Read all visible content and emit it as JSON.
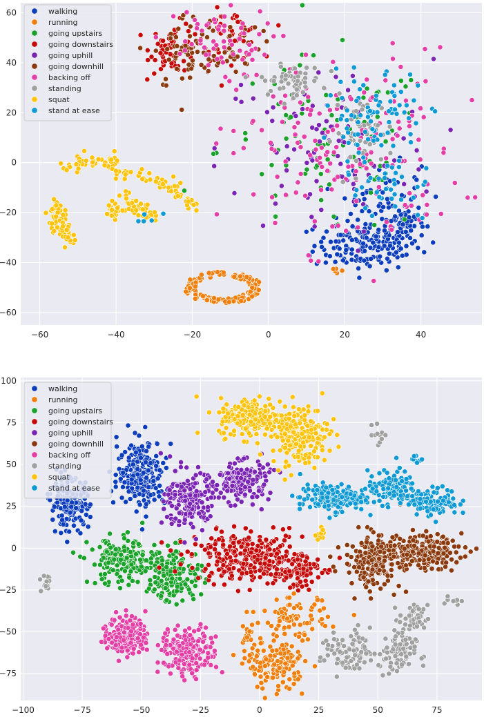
{
  "chart_data": [
    {
      "type": "scatter",
      "title": "",
      "xlabel": "",
      "ylabel": "",
      "xlim": [
        -65,
        56
      ],
      "ylim": [
        -65,
        64
      ],
      "xticks": [
        -60,
        -40,
        -20,
        0,
        20,
        40
      ],
      "yticks": [
        -60,
        -40,
        -20,
        0,
        20,
        40,
        60
      ],
      "grid": true,
      "legend": "top-left",
      "series": [
        {
          "name": "walking",
          "color": "#0c3dbd",
          "clusters": [
            {
              "cx": 26,
              "cy": -33,
              "sx": 7,
              "sy": 5,
              "n": 160
            },
            {
              "cx": 35,
              "cy": -24,
              "sx": 3,
              "sy": 4,
              "n": 60
            },
            {
              "cx": 30,
              "cy": -12,
              "sx": 5,
              "sy": 6,
              "n": 50
            }
          ]
        },
        {
          "name": "running",
          "color": "#f07f0d",
          "rings": [
            {
              "cx": -12,
              "cy": -50,
              "rx": 9,
              "ry": 5.5,
              "n": 150
            }
          ],
          "clusters": [
            {
              "cx": 18,
              "cy": -43,
              "sx": 1,
              "sy": 1,
              "n": 5
            }
          ]
        },
        {
          "name": "going upstairs",
          "color": "#1aa22a",
          "clusters": [
            {
              "cx": 15,
              "cy": 5,
              "sx": 14,
              "sy": 18,
              "n": 90
            }
          ]
        },
        {
          "name": "going downstairs",
          "color": "#c60a0a",
          "clusters": [
            {
              "cx": -25,
              "cy": 46,
              "sx": 3,
              "sy": 5,
              "n": 60
            },
            {
              "cx": -10,
              "cy": 51,
              "sx": 4,
              "sy": 5,
              "n": 50
            }
          ]
        },
        {
          "name": "going uphill",
          "color": "#7b25b5",
          "clusters": [
            {
              "cx": 15,
              "cy": 5,
              "sx": 14,
              "sy": 18,
              "n": 90
            }
          ]
        },
        {
          "name": "going downhill",
          "color": "#8b3a0e",
          "clusters": [
            {
              "cx": -22,
              "cy": 44,
              "sx": 4,
              "sy": 8,
              "n": 50
            },
            {
              "cx": -10,
              "cy": 48,
              "sx": 4,
              "sy": 6,
              "n": 40
            }
          ]
        },
        {
          "name": "backing off",
          "color": "#e43fa6",
          "clusters": [
            {
              "cx": -15,
              "cy": 48,
              "sx": 8,
              "sy": 7,
              "n": 60
            },
            {
              "cx": 20,
              "cy": 5,
              "sx": 15,
              "sy": 20,
              "n": 160
            }
          ]
        },
        {
          "name": "standing",
          "color": "#a0a0a0",
          "clusters": [
            {
              "cx": 6,
              "cy": 33,
              "sx": 4,
              "sy": 3,
              "n": 60
            },
            {
              "cx": 25,
              "cy": 12,
              "sx": 4,
              "sy": 7,
              "n": 50
            }
          ]
        },
        {
          "name": "squat",
          "color": "#ffc30b",
          "paths": [
            {
              "pts": [
                [
                  -55,
                  -17
                ],
                [
                  -55,
                  -25
                ],
                [
                  -52,
                  -31
                ]
              ],
              "n": 70
            },
            {
              "pts": [
                [
                  -54,
                  -2
                ],
                [
                  -50,
                  0
                ],
                [
                  -44,
                  0
                ],
                [
                  -40,
                  0
                ]
              ],
              "n": 45
            },
            {
              "pts": [
                [
                  -40,
                  -3
                ],
                [
                  -34,
                  -6
                ],
                [
                  -28,
                  -8
                ],
                [
                  -24,
                  -10
                ],
                [
                  -20,
                  -18
                ]
              ],
              "n": 55
            },
            {
              "pts": [
                [
                  -41,
                  -22
                ],
                [
                  -38,
                  -12
                ],
                [
                  -35,
                  -18
                ],
                [
                  -30,
                  -22
                ]
              ],
              "n": 60
            }
          ]
        },
        {
          "name": "stand at ease",
          "color": "#0f9ad6",
          "clusters": [
            {
              "cx": 28,
              "cy": 20,
              "sx": 6,
              "sy": 8,
              "n": 80
            },
            {
              "cx": 32,
              "cy": -8,
              "sx": 6,
              "sy": 8,
              "n": 40
            },
            {
              "cx": -32,
              "cy": -23,
              "sx": 3,
              "sy": 2,
              "n": 5
            }
          ]
        }
      ]
    },
    {
      "type": "scatter",
      "title": "",
      "xlabel": "",
      "ylabel": "",
      "xlim": [
        -101,
        94
      ],
      "ylim": [
        -91,
        102
      ],
      "xticks": [
        -100,
        -75,
        -50,
        -25,
        0,
        25,
        50,
        75
      ],
      "yticks": [
        -75,
        -50,
        -25,
        0,
        25,
        50,
        75,
        100
      ],
      "grid": true,
      "legend": "top-left",
      "series": [
        {
          "name": "walking",
          "color": "#0c3dbd",
          "clusters": [
            {
              "cx": -80,
              "cy": 27,
              "sx": 4,
              "sy": 7,
              "n": 200
            },
            {
              "cx": -50,
              "cy": 45,
              "sx": 5,
              "sy": 10,
              "n": 240
            }
          ]
        },
        {
          "name": "running",
          "color": "#f07f0d",
          "clusters": [
            {
              "cx": 7,
              "cy": -70,
              "sx": 6,
              "sy": 7,
              "n": 150
            },
            {
              "cx": 15,
              "cy": -42,
              "sx": 7,
              "sy": 6,
              "n": 80
            },
            {
              "cx": -5,
              "cy": -55,
              "sx": 1.5,
              "sy": 6,
              "n": 20
            }
          ]
        },
        {
          "name": "going upstairs",
          "color": "#1aa22a",
          "clusters": [
            {
              "cx": -58,
              "cy": -8,
              "sx": 7,
              "sy": 7,
              "n": 180
            },
            {
              "cx": -36,
              "cy": -16,
              "sx": 6,
              "sy": 8,
              "n": 160
            }
          ]
        },
        {
          "name": "going downstairs",
          "color": "#c60a0a",
          "clusters": [
            {
              "cx": -5,
              "cy": -5,
              "sx": 12,
              "sy": 7,
              "n": 300
            },
            {
              "cx": 14,
              "cy": -13,
              "sx": 6,
              "sy": 6,
              "n": 90
            }
          ]
        },
        {
          "name": "going uphill",
          "color": "#7b25b5",
          "clusters": [
            {
              "cx": -30,
              "cy": 28,
              "sx": 5,
              "sy": 9,
              "n": 170
            },
            {
              "cx": -8,
              "cy": 40,
              "sx": 6,
              "sy": 6,
              "n": 170
            }
          ]
        },
        {
          "name": "going downhill",
          "color": "#8b3a0e",
          "clusters": [
            {
              "cx": 48,
              "cy": -8,
              "sx": 6,
              "sy": 8,
              "n": 180
            },
            {
              "cx": 67,
              "cy": -2,
              "sx": 9,
              "sy": 5,
              "n": 190
            }
          ]
        },
        {
          "name": "backing off",
          "color": "#e43fa6",
          "clusters": [
            {
              "cx": -56,
              "cy": -52,
              "sx": 4,
              "sy": 6,
              "n": 200
            },
            {
              "cx": -30,
              "cy": -62,
              "sx": 6,
              "sy": 7,
              "n": 200
            }
          ]
        },
        {
          "name": "standing",
          "color": "#a0a0a0",
          "clusters": [
            {
              "cx": 38,
              "cy": -63,
              "sx": 6,
              "sy": 7,
              "n": 90
            },
            {
              "cx": 58,
              "cy": -63,
              "sx": 4,
              "sy": 7,
              "n": 80
            },
            {
              "cx": 65,
              "cy": -42,
              "sx": 3,
              "sy": 4,
              "n": 40
            },
            {
              "cx": -90,
              "cy": -20,
              "sx": 1.5,
              "sy": 4,
              "n": 15
            },
            {
              "cx": 51,
              "cy": 68,
              "sx": 1.5,
              "sy": 3,
              "n": 12
            },
            {
              "cx": 81,
              "cy": -31,
              "sx": 2,
              "sy": 1.5,
              "n": 10
            }
          ]
        },
        {
          "name": "squat",
          "color": "#ffc30b",
          "clusters": [
            {
              "cx": -3,
              "cy": 78,
              "sx": 7,
              "sy": 6,
              "n": 200
            },
            {
              "cx": 17,
              "cy": 68,
              "sx": 6,
              "sy": 9,
              "n": 200
            },
            {
              "cx": 26,
              "cy": 8,
              "sx": 1.2,
              "sy": 3,
              "n": 10
            }
          ]
        },
        {
          "name": "stand at ease",
          "color": "#0f9ad6",
          "clusters": [
            {
              "cx": 31,
              "cy": 30,
              "sx": 7,
              "sy": 4,
              "n": 180
            },
            {
              "cx": 56,
              "cy": 36,
              "sx": 5,
              "sy": 5,
              "n": 120
            },
            {
              "cx": 74,
              "cy": 28,
              "sx": 5,
              "sy": 4,
              "n": 110
            },
            {
              "cx": 66,
              "cy": 53,
              "sx": 1.5,
              "sy": 1.5,
              "n": 10
            }
          ]
        }
      ]
    }
  ]
}
